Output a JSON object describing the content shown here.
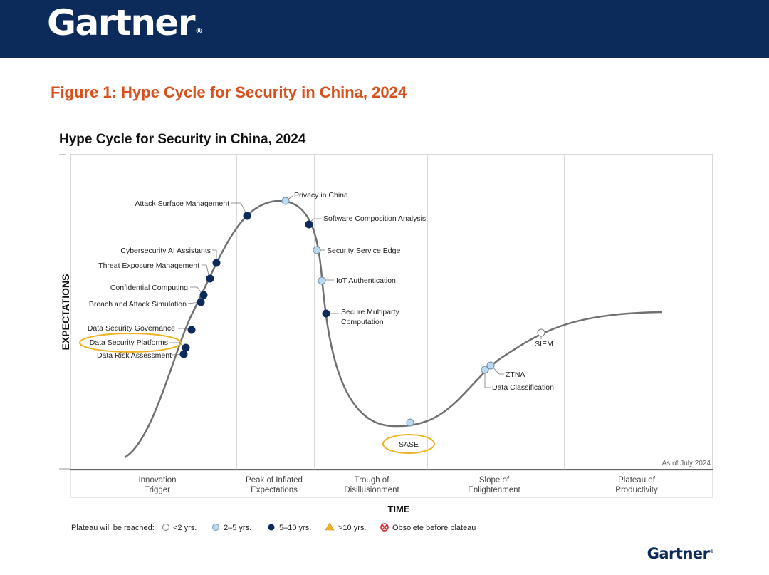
{
  "header": {
    "logo_text": "Gartner",
    "logo_mark": "®"
  },
  "figure_title": "Figure 1: Hype Cycle for Security in China, 2024",
  "footer": {
    "logo_text": "Gartner",
    "logo_mark": "®"
  },
  "colors": {
    "header_bg": "#0c2b5b",
    "figure_title": "#d8511d",
    "curve": "#707070",
    "dot_dark": "#0c2b5b",
    "dot_light": "#b9daf1",
    "dot_white": "#ffffff",
    "triangle": "#f0b323",
    "obsolete": "#d9232e",
    "highlight_ring": "#f0b323"
  },
  "chart_data": {
    "type": "hype-cycle",
    "title": "Hype Cycle for Security in China, 2024",
    "xlabel": "TIME",
    "ylabel": "EXPECTATIONS",
    "as_of": "As of July 2024",
    "phases": [
      {
        "line1": "Innovation",
        "line2": "Trigger"
      },
      {
        "line1": "Peak of Inflated",
        "line2": "Expectations"
      },
      {
        "line1": "Trough of",
        "line2": "Disillusionment"
      },
      {
        "line1": "Slope of",
        "line2": "Enlightenment"
      },
      {
        "line1": "Plateau of",
        "line2": "Productivity"
      }
    ],
    "legend": {
      "title": "Plateau will be reached:",
      "items": [
        {
          "label": "<2 yrs.",
          "marker": "white"
        },
        {
          "label": "2–5 yrs.",
          "marker": "light"
        },
        {
          "label": "5–10 yrs.",
          "marker": "dark"
        },
        {
          "label": ">10 yrs.",
          "marker": "triangle"
        },
        {
          "label": "Obsolete before plateau",
          "marker": "obsolete"
        }
      ]
    },
    "technologies": [
      {
        "name": "Data Risk Assessment",
        "phase": "Innovation Trigger",
        "plateau": "5–10 yrs.",
        "highlighted": false
      },
      {
        "name": "Data Security Platforms",
        "phase": "Innovation Trigger",
        "plateau": "5–10 yrs.",
        "highlighted": true
      },
      {
        "name": "Data Security Governance",
        "phase": "Innovation Trigger",
        "plateau": "5–10 yrs.",
        "highlighted": false
      },
      {
        "name": "Breach and Attack Simulation",
        "phase": "Innovation Trigger",
        "plateau": "5–10 yrs.",
        "highlighted": false
      },
      {
        "name": "Confidential Computing",
        "phase": "Innovation Trigger",
        "plateau": "5–10 yrs.",
        "highlighted": false
      },
      {
        "name": "Threat Exposure Management",
        "phase": "Innovation Trigger",
        "plateau": "5–10 yrs.",
        "highlighted": false
      },
      {
        "name": "Cybersecurity AI Assistants",
        "phase": "Innovation Trigger",
        "plateau": "5–10 yrs.",
        "highlighted": false
      },
      {
        "name": "Attack Surface Management",
        "phase": "Peak of Inflated Expectations",
        "plateau": "5–10 yrs.",
        "highlighted": false
      },
      {
        "name": "Privacy in China",
        "phase": "Peak of Inflated Expectations",
        "plateau": "2–5 yrs.",
        "highlighted": false
      },
      {
        "name": "Software Composition Analysis",
        "phase": "Peak of Inflated Expectations",
        "plateau": "5–10 yrs.",
        "highlighted": false
      },
      {
        "name": "Security Service Edge",
        "phase": "Trough of Disillusionment",
        "plateau": "2–5 yrs.",
        "highlighted": false
      },
      {
        "name": "IoT Authentication",
        "phase": "Trough of Disillusionment",
        "plateau": "2–5 yrs.",
        "highlighted": false
      },
      {
        "name": "Secure Multiparty Computation",
        "line1": "Secure Multiparty",
        "line2": "Computation",
        "phase": "Trough of Disillusionment",
        "plateau": "5–10 yrs.",
        "highlighted": false
      },
      {
        "name": "SASE",
        "phase": "Trough of Disillusionment",
        "plateau": "2–5 yrs.",
        "highlighted": true
      },
      {
        "name": "Data Classification",
        "phase": "Slope of Enlightenment",
        "plateau": "2–5 yrs.",
        "highlighted": false
      },
      {
        "name": "ZTNA",
        "phase": "Slope of Enlightenment",
        "plateau": "2–5 yrs.",
        "highlighted": false
      },
      {
        "name": "SIEM",
        "phase": "Slope of Enlightenment",
        "plateau": "<2 yrs.",
        "highlighted": false
      }
    ]
  }
}
